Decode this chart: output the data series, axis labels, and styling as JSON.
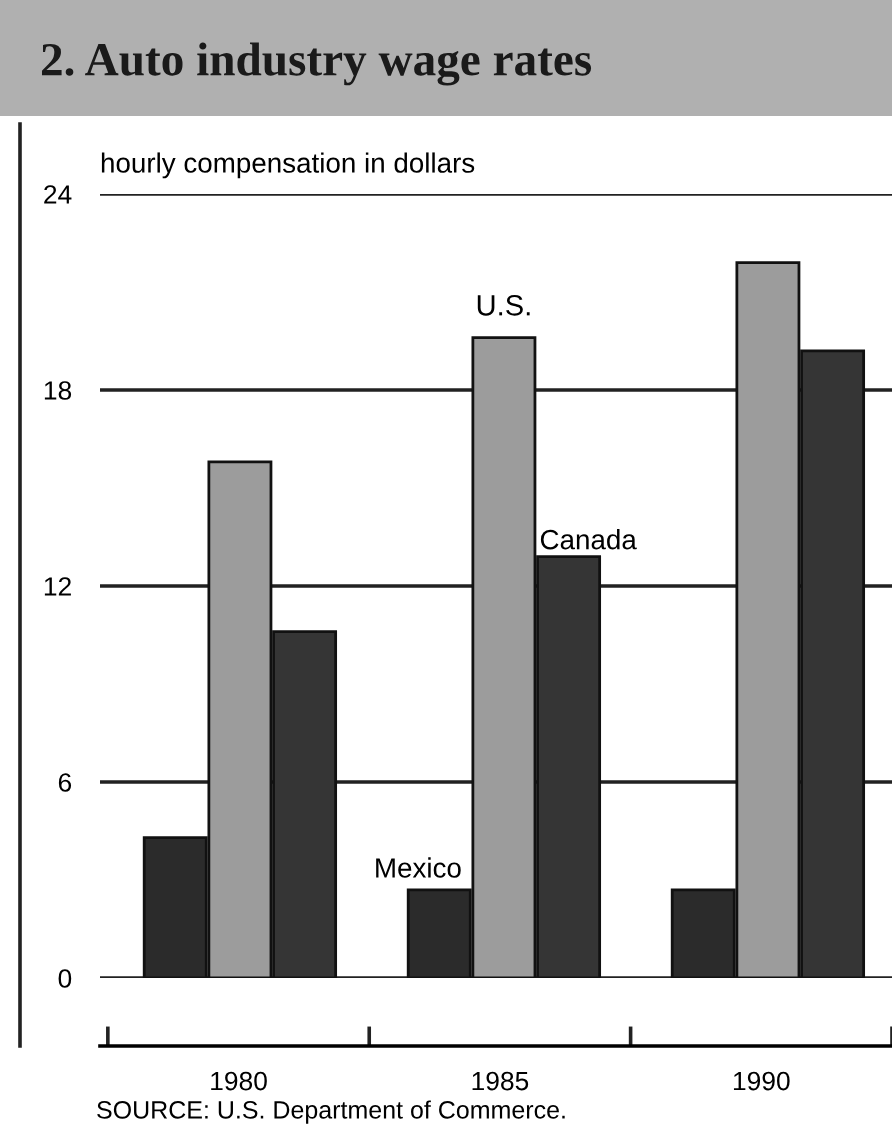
{
  "chart_data": {
    "type": "bar",
    "title": "2. Auto industry wage rates",
    "ylabel": "hourly compensation in dollars",
    "categories": [
      "1980",
      "1985",
      "1990"
    ],
    "series": [
      {
        "name": "Mexico",
        "color": "#2b2b2b",
        "values": [
          4.3,
          2.7,
          2.7
        ]
      },
      {
        "name": "U.S.",
        "color": "#9c9c9c",
        "values": [
          15.8,
          19.6,
          21.9
        ]
      },
      {
        "name": "Canada",
        "color": "#353535",
        "values": [
          10.6,
          12.9,
          19.2
        ]
      }
    ],
    "ylim": [
      0,
      24
    ],
    "yticks": [
      0,
      6,
      12,
      18,
      24
    ],
    "grid": "y",
    "annotations": [
      "SOURCE: U.S. Department of Commerce."
    ]
  }
}
